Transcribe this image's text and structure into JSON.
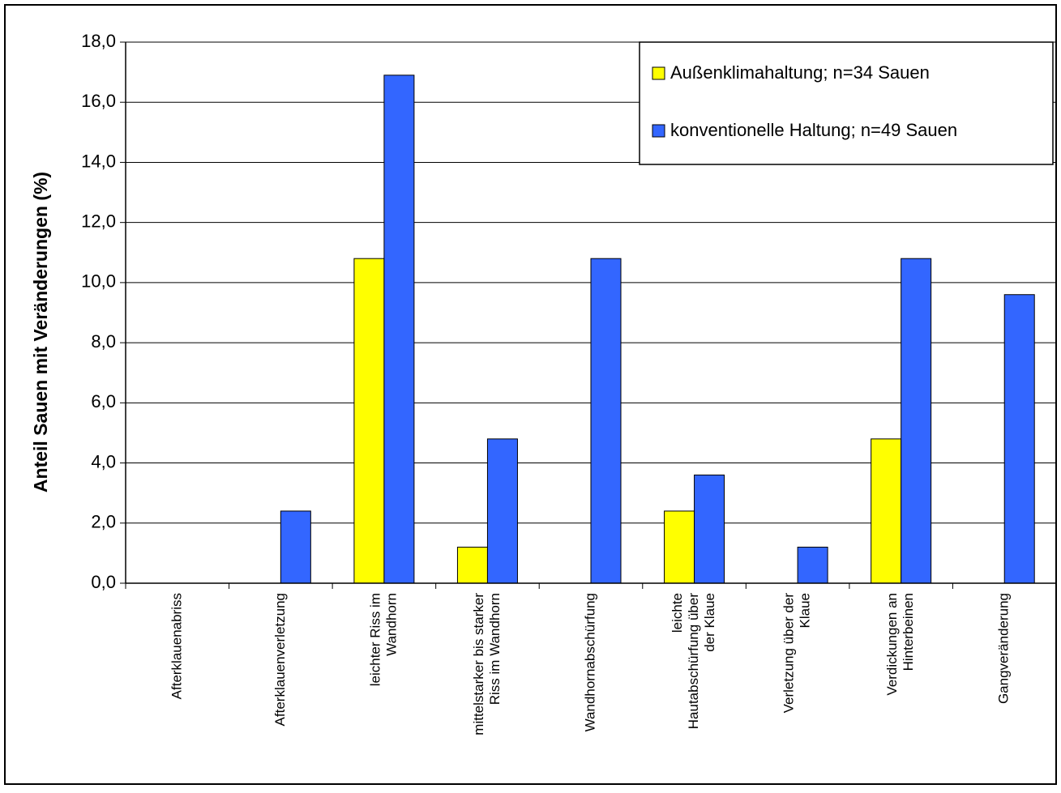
{
  "chart_data": {
    "type": "bar",
    "title": "",
    "xlabel": "",
    "ylabel": "Anteil Sauen mit Veränderungen (%)",
    "ylim": [
      0,
      18
    ],
    "y_ticks": [
      "0,0",
      "2,0",
      "4,0",
      "6,0",
      "8,0",
      "10,0",
      "12,0",
      "14,0",
      "16,0",
      "18,0"
    ],
    "y_tick_values": [
      0,
      2,
      4,
      6,
      8,
      10,
      12,
      14,
      16,
      18
    ],
    "grid": true,
    "legend_position": "top-right",
    "categories": [
      [
        "Afterklauenabriss"
      ],
      [
        "Afterklauenverletzung"
      ],
      [
        "leichter Riss im",
        "Wandhorn"
      ],
      [
        "mittelstarker bis starker",
        "Riss im Wandhorn"
      ],
      [
        "Wandhornabschürfung"
      ],
      [
        "leichte",
        "Hautabschürfung über",
        "der Klaue"
      ],
      [
        "Verletzung über der",
        "Klaue"
      ],
      [
        "Verdickungen an",
        "Hinterbeinen"
      ],
      [
        "Gangveränderung"
      ]
    ],
    "series": [
      {
        "name": "Außenklimahaltung; n=34 Sauen",
        "color": "#ffff00",
        "values": [
          0,
          0,
          10.8,
          1.2,
          0,
          2.4,
          0,
          4.8,
          0
        ]
      },
      {
        "name": "konventionelle Haltung; n=49 Sauen",
        "color": "#3366ff",
        "values": [
          0,
          2.4,
          16.9,
          4.8,
          10.8,
          3.6,
          1.2,
          10.8,
          9.6
        ]
      }
    ]
  }
}
